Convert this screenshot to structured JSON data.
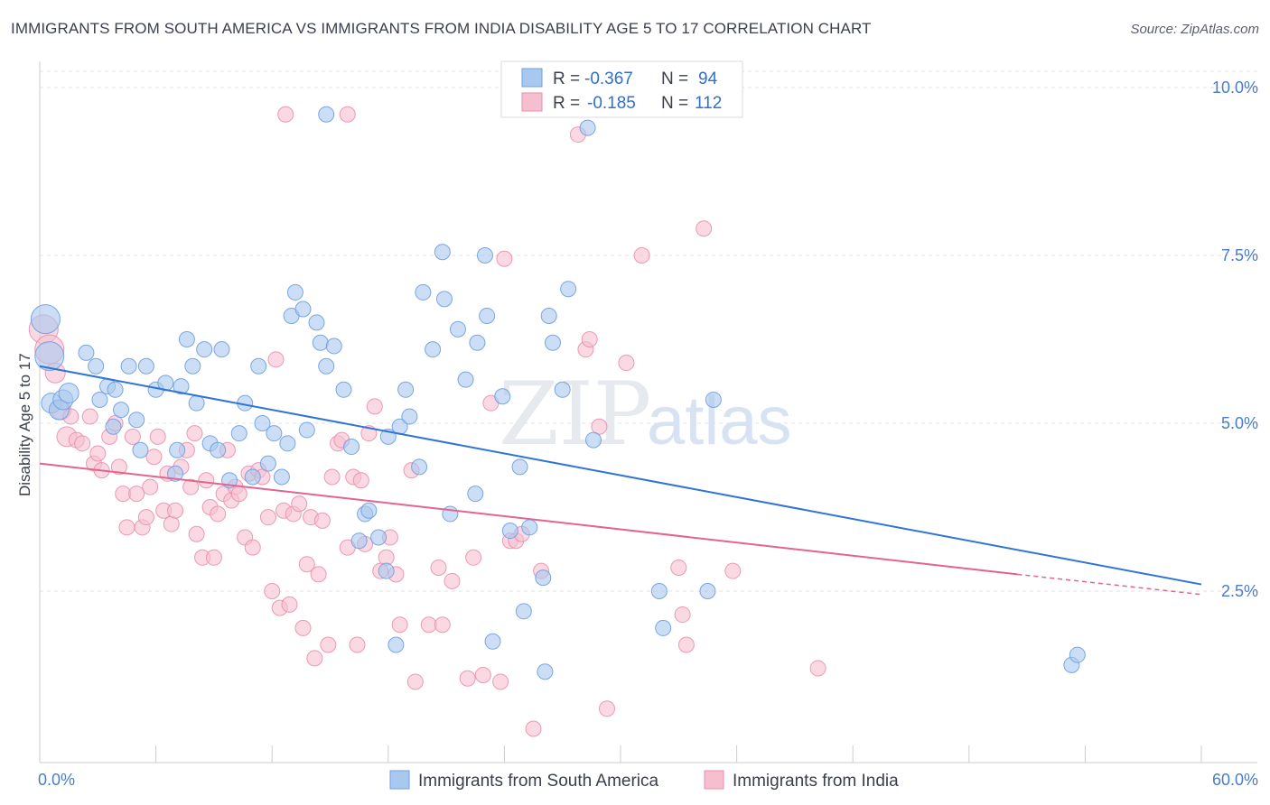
{
  "title": "IMMIGRANTS FROM SOUTH AMERICA VS IMMIGRANTS FROM INDIA DISABILITY AGE 5 TO 17 CORRELATION CHART",
  "source": "Source: ZipAtlas.com",
  "watermark": {
    "zip": "ZIP",
    "atlas": "atlas"
  },
  "colors": {
    "blue_fill": "#a9c8ef",
    "blue_stroke": "#6d9fe0",
    "blue_line": "#2f74d6",
    "pink_fill": "#f6bfd0",
    "pink_stroke": "#ea8fae",
    "pink_line": "#e2648f",
    "tick_text": "#4a7cc9",
    "grid": "#dde1e7"
  },
  "legend": {
    "rows": [
      {
        "r_label": "R =",
        "r_value": "-0.367",
        "n_label": "N =",
        "n_value": "94",
        "series": "blue"
      },
      {
        "r_label": "R =",
        "r_value": "-0.185",
        "n_label": "N =",
        "n_value": "112",
        "series": "pink"
      }
    ]
  },
  "chart_data": {
    "type": "scatter",
    "title": "IMMIGRANTS FROM SOUTH AMERICA VS IMMIGRANTS FROM INDIA DISABILITY AGE 5 TO 17 CORRELATION CHART",
    "xlabel": "",
    "ylabel": "Disability Age 5 to 17",
    "xlim": [
      0,
      60
    ],
    "ylim": [
      0,
      10.5
    ],
    "x_tick_labels": [
      "0.0%",
      "60.0%"
    ],
    "y_ticks": [
      2.5,
      5.0,
      7.5,
      10.0
    ],
    "y_tick_labels": [
      "2.5%",
      "5.0%",
      "7.5%",
      "10.0%"
    ],
    "grid": true,
    "legend_position": "top-center",
    "series": [
      {
        "name": "Immigrants from South America",
        "color": "#a9c8ef",
        "trend": {
          "x": [
            0,
            60
          ],
          "y": [
            5.85,
            2.6
          ],
          "style": "solid"
        },
        "points": [
          [
            0.3,
            6.55
          ],
          [
            0.5,
            6.0
          ],
          [
            0.6,
            5.3
          ],
          [
            1.0,
            5.2
          ],
          [
            1.2,
            5.35
          ],
          [
            1.5,
            5.45
          ],
          [
            2.4,
            6.05
          ],
          [
            2.9,
            5.85
          ],
          [
            3.1,
            5.35
          ],
          [
            3.5,
            5.55
          ],
          [
            3.9,
            5.5
          ],
          [
            3.8,
            4.95
          ],
          [
            4.2,
            5.2
          ],
          [
            4.6,
            5.85
          ],
          [
            5.0,
            5.05
          ],
          [
            5.2,
            4.6
          ],
          [
            5.5,
            5.85
          ],
          [
            6.0,
            5.5
          ],
          [
            6.5,
            5.6
          ],
          [
            7.0,
            4.25
          ],
          [
            7.1,
            4.6
          ],
          [
            7.3,
            5.55
          ],
          [
            7.6,
            6.25
          ],
          [
            7.9,
            5.85
          ],
          [
            8.1,
            5.3
          ],
          [
            8.5,
            6.1
          ],
          [
            8.8,
            4.7
          ],
          [
            9.2,
            4.6
          ],
          [
            9.4,
            6.1
          ],
          [
            9.8,
            4.15
          ],
          [
            10.3,
            4.85
          ],
          [
            10.6,
            5.3
          ],
          [
            11.0,
            4.2
          ],
          [
            11.3,
            5.85
          ],
          [
            11.5,
            5.0
          ],
          [
            11.8,
            4.4
          ],
          [
            12.1,
            4.85
          ],
          [
            12.5,
            4.2
          ],
          [
            12.8,
            4.7
          ],
          [
            13.0,
            6.6
          ],
          [
            13.2,
            6.95
          ],
          [
            13.6,
            6.7
          ],
          [
            13.8,
            4.9
          ],
          [
            14.3,
            6.5
          ],
          [
            14.5,
            6.2
          ],
          [
            14.8,
            5.85
          ],
          [
            15.2,
            6.15
          ],
          [
            15.7,
            5.5
          ],
          [
            16.1,
            4.65
          ],
          [
            16.5,
            3.25
          ],
          [
            16.8,
            3.65
          ],
          [
            17.0,
            3.7
          ],
          [
            17.5,
            3.3
          ],
          [
            17.9,
            2.8
          ],
          [
            18.0,
            4.8
          ],
          [
            18.4,
            1.7
          ],
          [
            18.6,
            4.95
          ],
          [
            18.9,
            5.5
          ],
          [
            19.1,
            5.1
          ],
          [
            19.6,
            4.35
          ],
          [
            19.8,
            6.95
          ],
          [
            20.3,
            6.1
          ],
          [
            20.8,
            7.55
          ],
          [
            20.9,
            6.85
          ],
          [
            21.2,
            3.65
          ],
          [
            21.6,
            6.4
          ],
          [
            22.0,
            5.65
          ],
          [
            22.5,
            3.95
          ],
          [
            22.6,
            6.2
          ],
          [
            23.0,
            7.5
          ],
          [
            23.1,
            6.6
          ],
          [
            23.4,
            1.75
          ],
          [
            23.9,
            5.4
          ],
          [
            24.3,
            3.4
          ],
          [
            24.8,
            4.35
          ],
          [
            25.0,
            2.2
          ],
          [
            25.3,
            3.45
          ],
          [
            26.0,
            2.7
          ],
          [
            26.1,
            1.3
          ],
          [
            26.3,
            6.6
          ],
          [
            26.5,
            6.2
          ],
          [
            27.0,
            5.5
          ],
          [
            27.3,
            7.0
          ],
          [
            28.3,
            9.4
          ],
          [
            28.6,
            4.75
          ],
          [
            32.0,
            2.5
          ],
          [
            32.2,
            1.95
          ],
          [
            34.5,
            2.5
          ],
          [
            34.8,
            5.35
          ],
          [
            53.3,
            1.4
          ],
          [
            53.6,
            1.55
          ],
          [
            14.8,
            9.6
          ]
        ]
      },
      {
        "name": "Immigrants from India",
        "color": "#f6bfd0",
        "trend": {
          "x": [
            0,
            50.5
          ],
          "y": [
            4.4,
            2.75
          ],
          "dashed_to": [
            60,
            2.45
          ],
          "style": "solid"
        },
        "points": [
          [
            0.2,
            6.4
          ],
          [
            0.5,
            6.1
          ],
          [
            0.8,
            5.75
          ],
          [
            1.1,
            5.2
          ],
          [
            1.4,
            4.8
          ],
          [
            1.6,
            5.1
          ],
          [
            1.9,
            4.75
          ],
          [
            2.2,
            4.7
          ],
          [
            2.6,
            5.1
          ],
          [
            2.8,
            4.4
          ],
          [
            3.0,
            4.55
          ],
          [
            3.2,
            4.3
          ],
          [
            3.6,
            4.8
          ],
          [
            3.9,
            5.0
          ],
          [
            4.1,
            4.35
          ],
          [
            4.3,
            3.95
          ],
          [
            4.5,
            3.45
          ],
          [
            4.8,
            4.8
          ],
          [
            5.0,
            3.95
          ],
          [
            5.3,
            3.45
          ],
          [
            5.5,
            3.6
          ],
          [
            5.7,
            4.05
          ],
          [
            5.9,
            4.5
          ],
          [
            6.1,
            4.8
          ],
          [
            6.4,
            3.7
          ],
          [
            6.6,
            4.25
          ],
          [
            6.8,
            3.5
          ],
          [
            7.0,
            3.7
          ],
          [
            7.3,
            4.35
          ],
          [
            7.6,
            4.6
          ],
          [
            7.8,
            4.05
          ],
          [
            8.0,
            4.85
          ],
          [
            8.1,
            3.35
          ],
          [
            8.4,
            3.0
          ],
          [
            8.6,
            4.15
          ],
          [
            8.8,
            3.75
          ],
          [
            9.0,
            3.0
          ],
          [
            9.2,
            3.65
          ],
          [
            9.5,
            3.95
          ],
          [
            9.7,
            4.6
          ],
          [
            9.9,
            3.85
          ],
          [
            10.1,
            4.05
          ],
          [
            10.3,
            3.95
          ],
          [
            10.6,
            3.3
          ],
          [
            10.8,
            4.25
          ],
          [
            11.0,
            3.15
          ],
          [
            11.3,
            4.3
          ],
          [
            11.5,
            4.2
          ],
          [
            11.8,
            3.6
          ],
          [
            12.0,
            2.5
          ],
          [
            12.2,
            5.95
          ],
          [
            12.4,
            2.25
          ],
          [
            12.6,
            3.7
          ],
          [
            12.9,
            2.3
          ],
          [
            13.1,
            3.65
          ],
          [
            13.4,
            3.8
          ],
          [
            13.6,
            1.95
          ],
          [
            13.8,
            2.9
          ],
          [
            14.0,
            3.6
          ],
          [
            14.2,
            1.5
          ],
          [
            14.4,
            2.75
          ],
          [
            14.6,
            3.55
          ],
          [
            14.9,
            1.7
          ],
          [
            15.1,
            4.2
          ],
          [
            15.4,
            4.7
          ],
          [
            15.6,
            4.75
          ],
          [
            15.9,
            3.15
          ],
          [
            16.2,
            4.2
          ],
          [
            16.4,
            1.7
          ],
          [
            16.6,
            4.15
          ],
          [
            16.8,
            3.2
          ],
          [
            17.0,
            4.85
          ],
          [
            17.3,
            5.25
          ],
          [
            17.6,
            2.8
          ],
          [
            17.9,
            3.0
          ],
          [
            18.1,
            3.3
          ],
          [
            18.4,
            2.75
          ],
          [
            18.6,
            2.0
          ],
          [
            19.2,
            4.3
          ],
          [
            19.4,
            1.15
          ],
          [
            20.1,
            2.0
          ],
          [
            20.6,
            2.85
          ],
          [
            20.8,
            2.0
          ],
          [
            21.3,
            2.65
          ],
          [
            22.1,
            1.2
          ],
          [
            22.4,
            3.0
          ],
          [
            22.9,
            1.25
          ],
          [
            23.3,
            5.3
          ],
          [
            23.8,
            1.15
          ],
          [
            24.0,
            7.45
          ],
          [
            24.3,
            3.25
          ],
          [
            24.6,
            3.25
          ],
          [
            24.9,
            3.35
          ],
          [
            25.5,
            0.45
          ],
          [
            25.9,
            2.8
          ],
          [
            27.8,
            9.3
          ],
          [
            28.2,
            6.1
          ],
          [
            28.4,
            6.25
          ],
          [
            28.9,
            4.95
          ],
          [
            29.3,
            0.75
          ],
          [
            30.3,
            5.9
          ],
          [
            31.1,
            7.5
          ],
          [
            33.0,
            2.85
          ],
          [
            33.2,
            2.15
          ],
          [
            33.4,
            1.7
          ],
          [
            34.3,
            7.9
          ],
          [
            35.8,
            2.8
          ],
          [
            40.2,
            1.35
          ],
          [
            12.7,
            9.6
          ],
          [
            15.9,
            9.6
          ]
        ]
      }
    ]
  }
}
